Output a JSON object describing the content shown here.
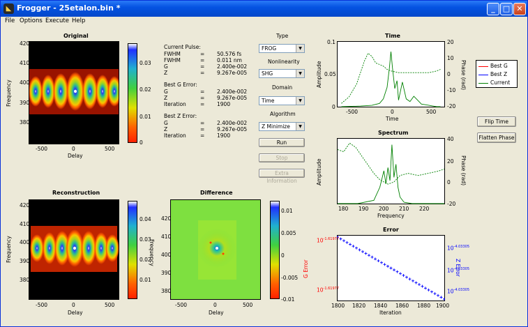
{
  "window": {
    "title": "Frogger - 25etalon.bin *",
    "app_icon": "matlab-figure-icon",
    "controls": {
      "minimize": "_",
      "maximize": "□",
      "close": "✕"
    }
  },
  "menu": [
    "File",
    "Options",
    "Execute",
    "Help"
  ],
  "plots": {
    "original": {
      "title": "Original",
      "xlabel": "Delay",
      "ylabel": "Frequency",
      "xticks": [
        "-500",
        "0",
        "500"
      ],
      "yticks": [
        "420",
        "410",
        "400",
        "390",
        "380"
      ],
      "colorbar_ticks": [
        "0.03",
        "0.02",
        "0.01",
        "0"
      ]
    },
    "reconstruction": {
      "title": "Reconstruction",
      "xlabel": "Delay",
      "ylabel": "Frequency",
      "xticks": [
        "-500",
        "0",
        "500"
      ],
      "yticks": [
        "420",
        "410",
        "400",
        "390",
        "380"
      ],
      "colorbar_ticks": [
        "0.04",
        "0.03",
        "0.02",
        "0.01"
      ]
    },
    "difference": {
      "title": "Difference",
      "xlabel": "Delay",
      "ylabel": "Frequency",
      "xticks": [
        "-500",
        "0",
        "500"
      ],
      "yticks": [
        "420",
        "410",
        "400",
        "390",
        "380"
      ],
      "colorbar_ticks": [
        "0.01",
        "0.005",
        "0",
        "-0.005",
        "-0.01"
      ]
    }
  },
  "info": {
    "current_title": "Current Pulse:",
    "current": [
      {
        "k": "FWHM",
        "eq": "=",
        "v": "50.576 fs"
      },
      {
        "k": "FWHM",
        "eq": "=",
        "v": "0.011 nm"
      },
      {
        "k": "G",
        "eq": "=",
        "v": "2.400e-002"
      },
      {
        "k": "Z",
        "eq": "=",
        "v": "9.267e-005"
      }
    ],
    "bestg_title": "Best G Error:",
    "bestg": [
      {
        "k": "G",
        "eq": "=",
        "v": "2.400e-002"
      },
      {
        "k": "Z",
        "eq": "=",
        "v": "9.267e-005"
      },
      {
        "k": "Iteration",
        "eq": "=",
        "v": "1900"
      }
    ],
    "bestz_title": "Best Z Error:",
    "bestz": [
      {
        "k": "G",
        "eq": "=",
        "v": "2.400e-002"
      },
      {
        "k": "Z",
        "eq": "=",
        "v": "9.267e-005"
      },
      {
        "k": "Iteration",
        "eq": "=",
        "v": "1900"
      }
    ]
  },
  "controls": {
    "type_label": "Type",
    "type_value": "FROG",
    "nonlinearity_label": "Nonlinearity",
    "nonlinearity_value": "SHG",
    "domain_label": "Domain",
    "domain_value": "Time",
    "algorithm_label": "Algorithm",
    "algorithm_value": "Z Minimize",
    "run": "Run",
    "stop": "Stop",
    "extra": "Extra Information",
    "flip_time": "Flip Time",
    "flatten_phase": "Flatten Phase"
  },
  "legend": [
    {
      "name": "Best G",
      "color": "#ff0000"
    },
    {
      "name": "Best Z",
      "color": "#0000ff"
    },
    {
      "name": "Current",
      "color": "#008000"
    }
  ],
  "time_plot": {
    "title": "Time",
    "xlabel": "Time",
    "ylabel": "Amplitude",
    "y2label": "Phase (rad)",
    "xticks": [
      "-500",
      "0",
      "500"
    ],
    "yticks": [
      "0.1",
      "0.05",
      "0"
    ],
    "y2ticks": [
      "20",
      "10",
      "0",
      "-10",
      "-20"
    ]
  },
  "spectrum_plot": {
    "title": "Spectrum",
    "xlabel": "Frequency",
    "ylabel": "Amplitude",
    "y2label": "Phase (rad)",
    "xticks": [
      "180",
      "190",
      "200",
      "210",
      "220"
    ],
    "y2ticks": [
      "40",
      "20",
      "0",
      "-20"
    ]
  },
  "error_plot": {
    "title": "Error",
    "xlabel": "Iteration",
    "ylabel": "G Error",
    "y2label": "Z Error",
    "xticks": [
      "1800",
      "1820",
      "1840",
      "1860",
      "1880",
      "1900"
    ],
    "yticks": [
      {
        "base": "10",
        "exp": "-1.61977"
      },
      {
        "base": "10",
        "exp": "-1.61977"
      }
    ],
    "y2ticks": [
      {
        "base": "10",
        "exp": "-4.03305"
      },
      {
        "base": "10",
        "exp": "-4.03305"
      },
      {
        "base": "10",
        "exp": "-4.03305"
      }
    ]
  },
  "chart_data": [
    {
      "type": "line",
      "title": "Time",
      "xlabel": "Time",
      "ylabel": "Amplitude",
      "y2label": "Phase (rad)",
      "xlim": [
        -700,
        700
      ],
      "ylim": [
        0,
        0.1
      ],
      "y2lim": [
        -20,
        20
      ],
      "series": [
        {
          "name": "Current",
          "axis": "left",
          "style": "solid",
          "x": [
            -650,
            -400,
            -250,
            -150,
            -100,
            -50,
            -20,
            0,
            20,
            50,
            80,
            100,
            150,
            200,
            250,
            300,
            350,
            400,
            450,
            500,
            550,
            600,
            650
          ],
          "y": [
            0,
            0.001,
            0.002,
            0.005,
            0.012,
            0.03,
            0.06,
            0.085,
            0.06,
            0.028,
            0.04,
            0.01,
            0.038,
            0.012,
            0.008,
            0.016,
            0.01,
            0.004,
            0.003,
            0.002,
            0.001,
            0,
            0
          ]
        },
        {
          "name": "Current",
          "axis": "right",
          "style": "dashed",
          "x": [
            -650,
            -550,
            -450,
            -350,
            -300,
            -250,
            -200,
            -150,
            -100,
            -50,
            0,
            100,
            200,
            300,
            400,
            500,
            600,
            650
          ],
          "y": [
            -18,
            -14,
            -6,
            8,
            13,
            11,
            7,
            6,
            5,
            3,
            2,
            1,
            1,
            1,
            1,
            1,
            2,
            3
          ]
        }
      ]
    },
    {
      "type": "line",
      "title": "Spectrum",
      "xlabel": "Frequency",
      "ylabel": "Amplitude",
      "y2label": "Phase (rad)",
      "xlim": [
        175,
        228
      ],
      "y2lim": [
        -20,
        40
      ],
      "series": [
        {
          "name": "Current",
          "axis": "left",
          "style": "solid",
          "x": [
            175,
            185,
            193,
            196,
            198,
            199,
            200,
            201,
            202,
            203,
            204,
            205,
            206,
            208,
            212,
            228
          ],
          "y": [
            0,
            0,
            0.05,
            0.25,
            0.5,
            0.3,
            0.55,
            0.35,
            0.9,
            0.4,
            0.6,
            0.25,
            0.1,
            0.02,
            0,
            0
          ]
        },
        {
          "name": "Current",
          "axis": "right",
          "style": "dashed",
          "x": [
            175,
            178,
            181,
            184,
            187,
            190,
            193,
            196,
            198,
            200,
            203,
            206,
            210,
            215,
            220,
            225,
            228
          ],
          "y": [
            30,
            28,
            36,
            32,
            24,
            16,
            8,
            2,
            0,
            -2,
            0,
            6,
            8,
            6,
            8,
            10,
            12
          ]
        }
      ]
    },
    {
      "type": "line",
      "title": "Error",
      "xlabel": "Iteration",
      "ylabel": "G Error",
      "y2label": "Z Error",
      "xlim": [
        1800,
        1900
      ],
      "series": [
        {
          "name": "Best Z",
          "axis": "right",
          "style": "markers",
          "x": [
            1800,
            1900
          ],
          "y": [
            1,
            0
          ]
        }
      ]
    }
  ]
}
